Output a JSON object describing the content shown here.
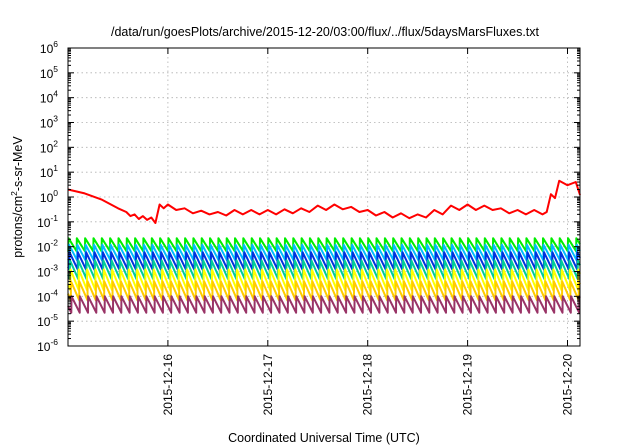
{
  "chart_data": {
    "type": "line",
    "title": "/data/run/goesPlots/archive/2015-12-20/03:00/flux/../flux/5daysMarsFluxes.txt",
    "xlabel": "Coordinated Universal Time (UTC)",
    "ylabel_parts": {
      "base": "protons/cm",
      "exp": "2",
      "rest": "-s-sr-MeV"
    },
    "yscale": "log",
    "ylim": [
      1e-06,
      1000000.0
    ],
    "ytick_exponents": [
      -6,
      -5,
      -4,
      -3,
      -2,
      -1,
      0,
      1,
      2,
      3,
      4,
      5,
      6
    ],
    "ytick_base": "10",
    "xlim": [
      "2015-12-15T00:00",
      "2015-12-20T03:00"
    ],
    "xticks": [
      {
        "label": "2015-12-16",
        "t": "2015-12-16T00:00"
      },
      {
        "label": "2015-12-17",
        "t": "2015-12-17T00:00"
      },
      {
        "label": "2015-12-18",
        "t": "2015-12-18T00:00"
      },
      {
        "label": "2015-12-19",
        "t": "2015-12-19T00:00"
      },
      {
        "label": "2015-12-20",
        "t": "2015-12-20T00:00"
      }
    ],
    "grid": true,
    "legend": "none",
    "series": [
      {
        "color": "#ff0000",
        "x": [
          "2015-12-15T00:00",
          "2015-12-15T04:00",
          "2015-12-15T08:00",
          "2015-12-15T12:00",
          "2015-12-15T14:00",
          "2015-12-15T15:00",
          "2015-12-15T16:00",
          "2015-12-15T17:00",
          "2015-12-15T18:00",
          "2015-12-15T19:00",
          "2015-12-15T20:00",
          "2015-12-15T21:00",
          "2015-12-15T22:00",
          "2015-12-15T23:00",
          "2015-12-16T00:00",
          "2015-12-16T02:00",
          "2015-12-16T04:00",
          "2015-12-16T06:00",
          "2015-12-16T08:00",
          "2015-12-16T10:00",
          "2015-12-16T12:00",
          "2015-12-16T14:00",
          "2015-12-16T16:00",
          "2015-12-16T18:00",
          "2015-12-16T20:00",
          "2015-12-16T22:00",
          "2015-12-17T00:00",
          "2015-12-17T02:00",
          "2015-12-17T04:00",
          "2015-12-17T06:00",
          "2015-12-17T08:00",
          "2015-12-17T10:00",
          "2015-12-17T12:00",
          "2015-12-17T14:00",
          "2015-12-17T16:00",
          "2015-12-17T18:00",
          "2015-12-17T20:00",
          "2015-12-17T22:00",
          "2015-12-18T00:00",
          "2015-12-18T02:00",
          "2015-12-18T04:00",
          "2015-12-18T06:00",
          "2015-12-18T08:00",
          "2015-12-18T10:00",
          "2015-12-18T12:00",
          "2015-12-18T14:00",
          "2015-12-18T16:00",
          "2015-12-18T18:00",
          "2015-12-18T20:00",
          "2015-12-18T22:00",
          "2015-12-19T00:00",
          "2015-12-19T02:00",
          "2015-12-19T04:00",
          "2015-12-19T06:00",
          "2015-12-19T08:00",
          "2015-12-19T10:00",
          "2015-12-19T12:00",
          "2015-12-19T14:00",
          "2015-12-19T16:00",
          "2015-12-19T18:00",
          "2015-12-19T19:00",
          "2015-12-19T20:00",
          "2015-12-19T21:00",
          "2015-12-19T22:00",
          "2015-12-20T00:00",
          "2015-12-20T02:00",
          "2015-12-20T03:00"
        ],
        "y": [
          2.0,
          1.4,
          0.8,
          0.35,
          0.25,
          0.17,
          0.2,
          0.13,
          0.17,
          0.12,
          0.15,
          0.09,
          0.5,
          0.35,
          0.5,
          0.3,
          0.35,
          0.22,
          0.28,
          0.2,
          0.25,
          0.18,
          0.3,
          0.2,
          0.3,
          0.2,
          0.3,
          0.2,
          0.32,
          0.22,
          0.35,
          0.25,
          0.45,
          0.3,
          0.5,
          0.32,
          0.4,
          0.25,
          0.3,
          0.18,
          0.25,
          0.15,
          0.22,
          0.14,
          0.2,
          0.15,
          0.3,
          0.2,
          0.45,
          0.3,
          0.5,
          0.3,
          0.45,
          0.3,
          0.35,
          0.22,
          0.3,
          0.2,
          0.3,
          0.2,
          0.25,
          1.3,
          0.9,
          4.5,
          3.0,
          4.0,
          1.2
        ]
      },
      {
        "color": "#00ee00",
        "peak": 0.022,
        "trough": 0.0065
      },
      {
        "color": "#00bbff",
        "peak": 0.012,
        "trough": 0.0028
      },
      {
        "color": "#0033dd",
        "peak": 0.006,
        "trough": 0.0012
      },
      {
        "color": "#00cc99",
        "peak": 0.0028,
        "trough": 0.0005
      },
      {
        "color": "#ffff00",
        "peak": 0.0012,
        "trough": 0.00018
      },
      {
        "color": "#ffcc00",
        "peak": 0.0004,
        "trough": 7e-05
      },
      {
        "color": "#993366",
        "peak": 0.0001,
        "trough": 2.2e-05
      }
    ],
    "periodic_series_period_hours": 2
  }
}
